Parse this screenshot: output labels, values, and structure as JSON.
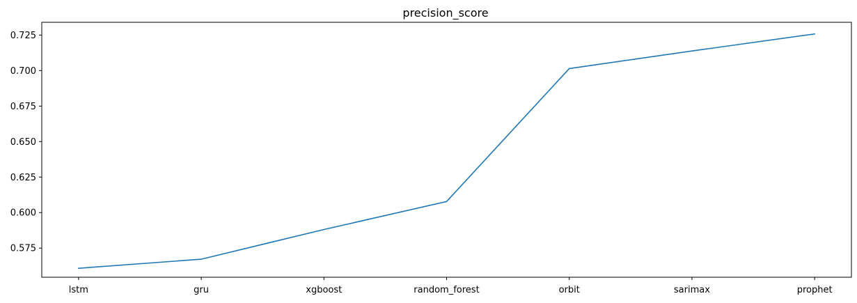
{
  "chart_data": {
    "type": "line",
    "title": "precision_score",
    "xlabel": "",
    "ylabel": "",
    "categories": [
      "lstm",
      "gru",
      "xgboost",
      "random_forest",
      "orbit",
      "sarimax",
      "prophet"
    ],
    "series": [
      {
        "values": [
          0.5608,
          0.5672,
          0.5881,
          0.6078,
          0.7014,
          0.7138,
          0.7258
        ],
        "color": "#1f77b4"
      }
    ],
    "ylim": [
      0.5545,
      0.734
    ],
    "yticks": [
      0.575,
      0.6,
      0.625,
      0.65,
      0.675,
      0.7,
      0.725
    ],
    "ytick_labels": [
      "0.575",
      "0.600",
      "0.625",
      "0.650",
      "0.675",
      "0.700",
      "0.725"
    ],
    "grid": false,
    "legend": "none"
  }
}
